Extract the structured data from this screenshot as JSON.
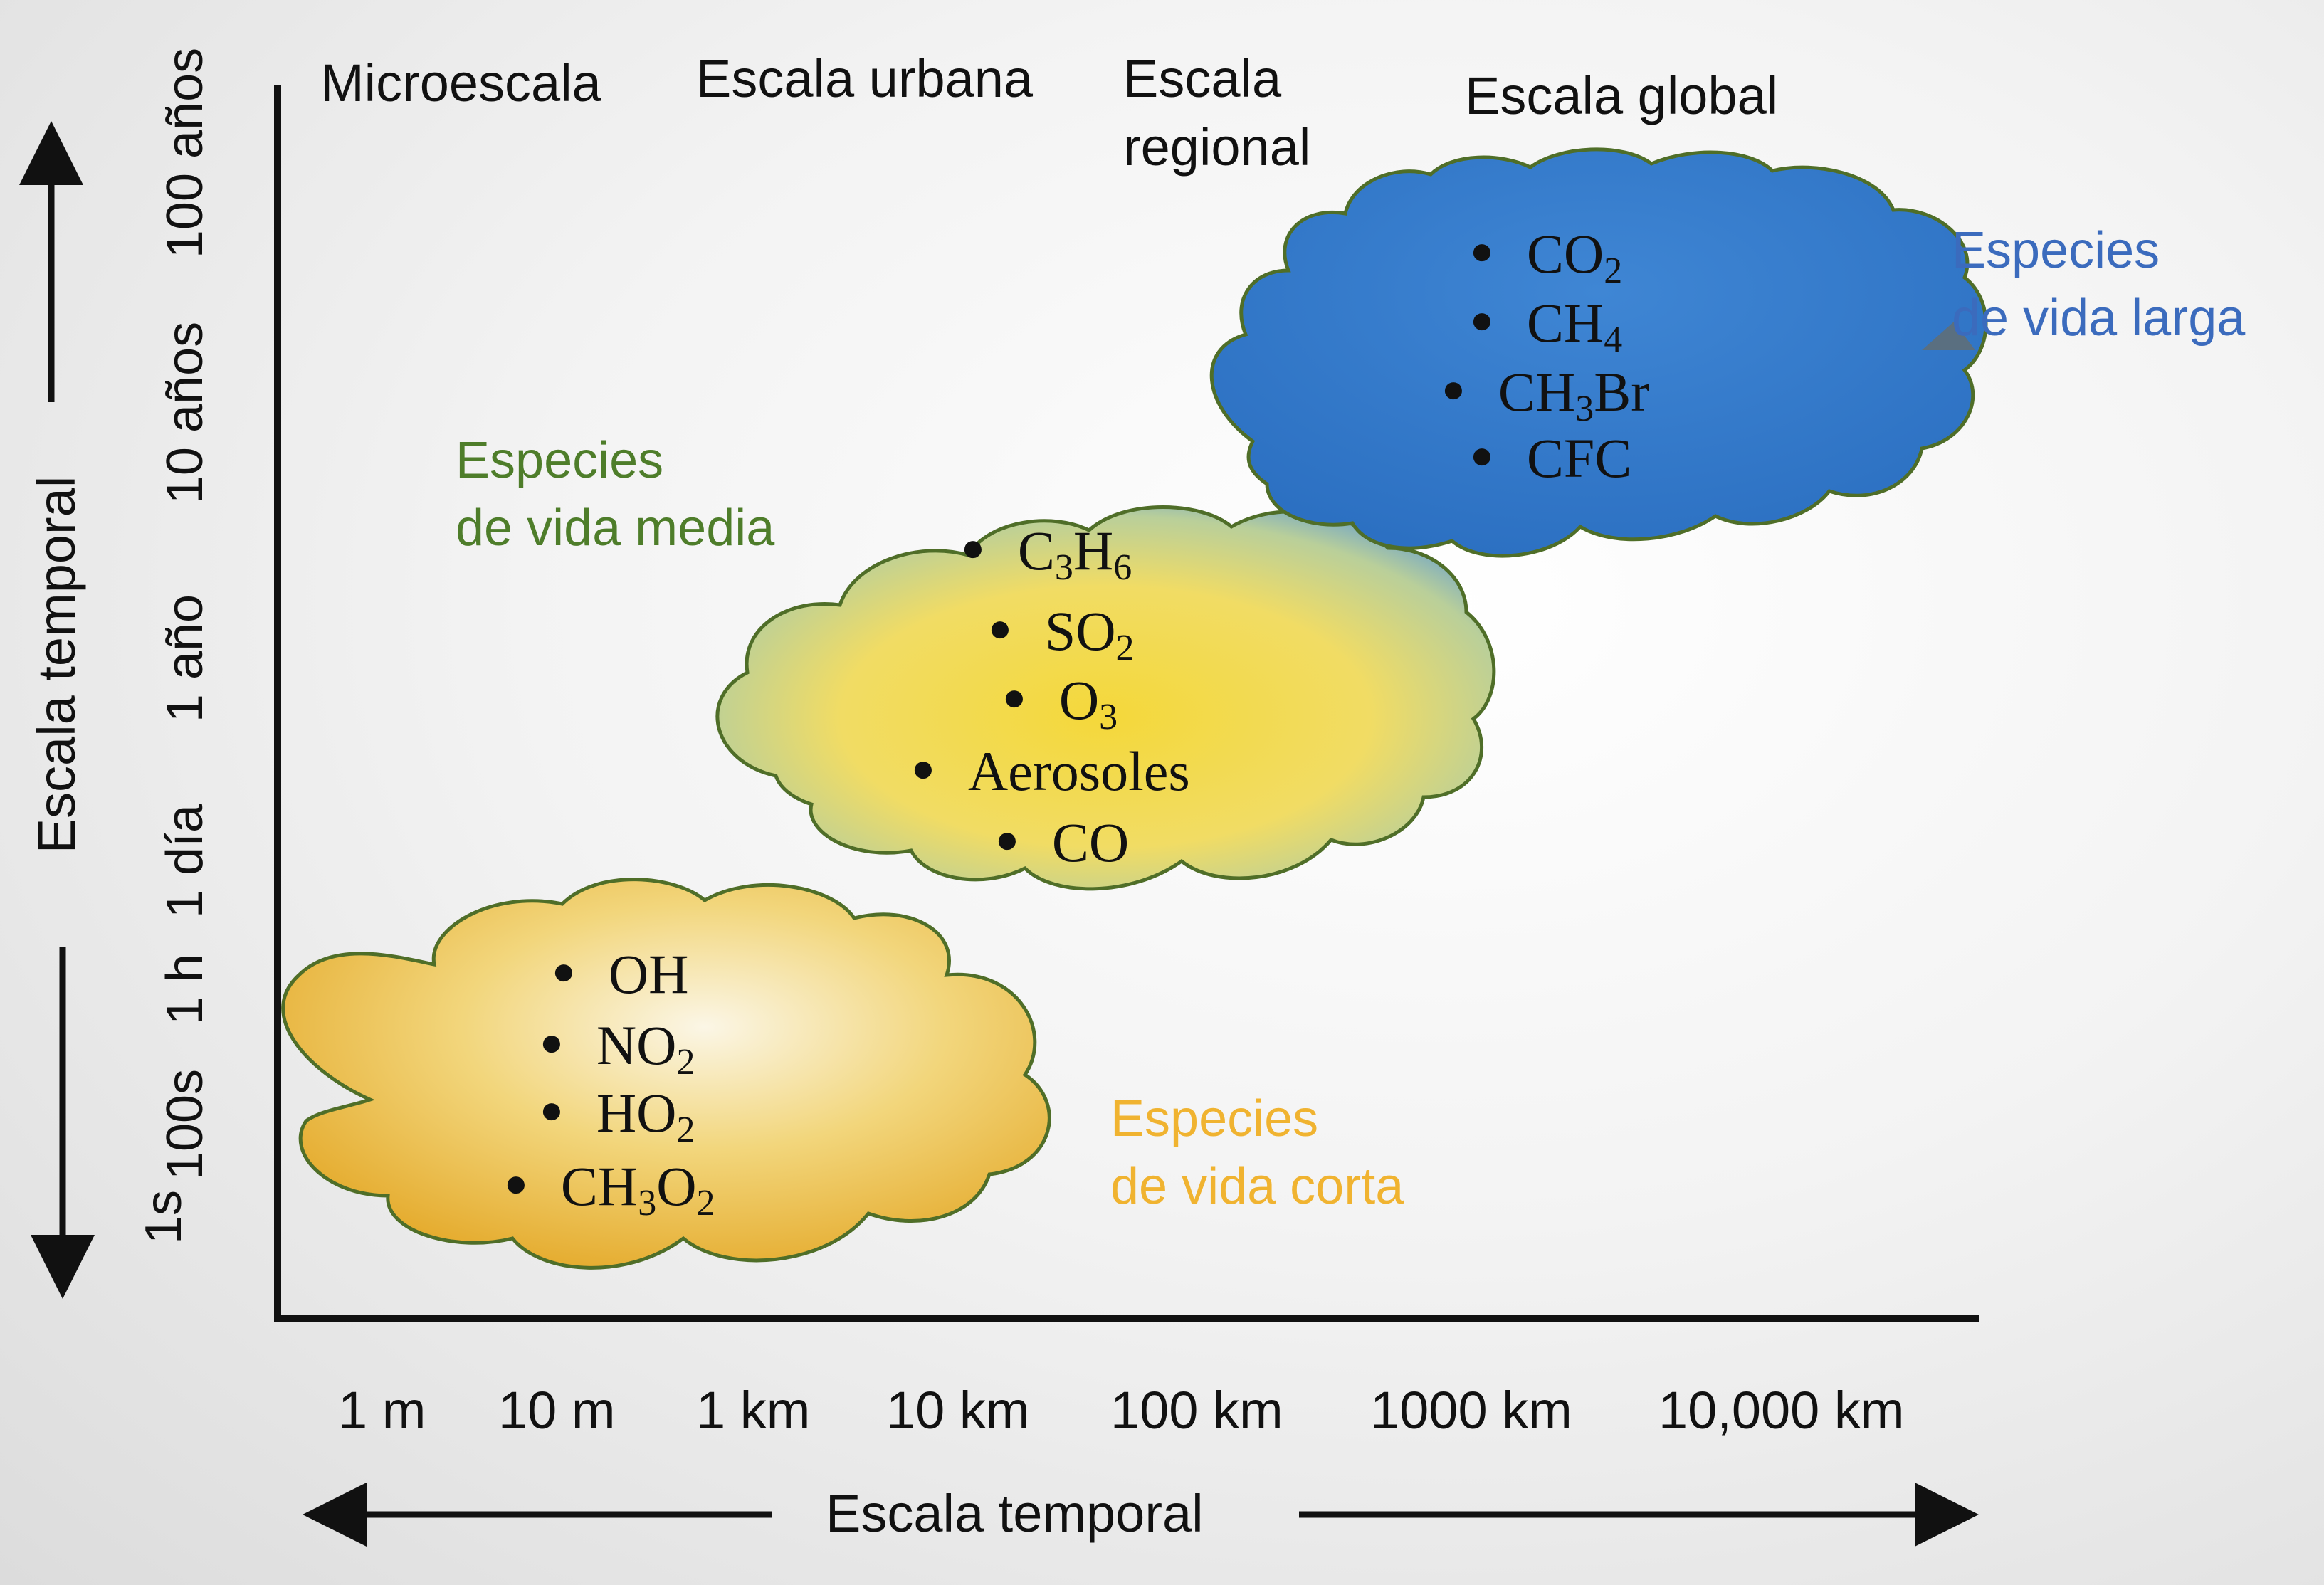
{
  "colors": {
    "short_text": "#f0b330",
    "medium_text": "#4e7d2a",
    "long_text": "#3b6bbd",
    "cloud_outline": "#4f6e28",
    "axis": "#111111"
  },
  "x_axis": {
    "ticks": [
      "1 m",
      "10 m",
      "1 km",
      "10 km",
      "100 km",
      "1000 km",
      "10,000 km"
    ],
    "title": "Escala temporal"
  },
  "y_axis": {
    "ticks": [
      "1s",
      "100s",
      "1 h",
      "1 día",
      "1 año",
      "10 años",
      "100 años"
    ],
    "title": "Escala temporal"
  },
  "spatial_scales": {
    "micro": "Microescala",
    "urban": "Escala urbana",
    "regional_line1": "Escala",
    "regional_line2": "regional",
    "global": "Escala global"
  },
  "categories": {
    "short": {
      "line1": "Especies",
      "line2": "de vida corta"
    },
    "medium": {
      "line1": "Especies",
      "line2": "de vida media"
    },
    "long": {
      "line1": "Especies",
      "line2": "de vida larga"
    }
  },
  "clouds": {
    "short": {
      "icon": "bullet-icon",
      "species": [
        {
          "base": "OH",
          "sub": "",
          "tail": ""
        },
        {
          "base": "NO",
          "sub": "2",
          "tail": ""
        },
        {
          "base": "HO",
          "sub": "2",
          "tail": ""
        },
        {
          "base": "CH",
          "sub": "3",
          "tail": "O",
          "sub2": "2"
        }
      ]
    },
    "medium": {
      "species": [
        {
          "base": "C",
          "sub": "3",
          "tail": "H",
          "sub2": "6"
        },
        {
          "base": "SO",
          "sub": "2",
          "tail": ""
        },
        {
          "base": "O",
          "sub": "3",
          "tail": ""
        },
        {
          "base": "Aerosoles",
          "sub": "",
          "tail": ""
        },
        {
          "base": "CO",
          "sub": "",
          "tail": ""
        }
      ]
    },
    "long": {
      "species": [
        {
          "base": "CO",
          "sub": "2",
          "tail": ""
        },
        {
          "base": "CH",
          "sub": "4",
          "tail": ""
        },
        {
          "base": "CH",
          "sub": "3",
          "tail": "Br"
        },
        {
          "base": "CFC",
          "sub": "",
          "tail": ""
        }
      ]
    }
  }
}
